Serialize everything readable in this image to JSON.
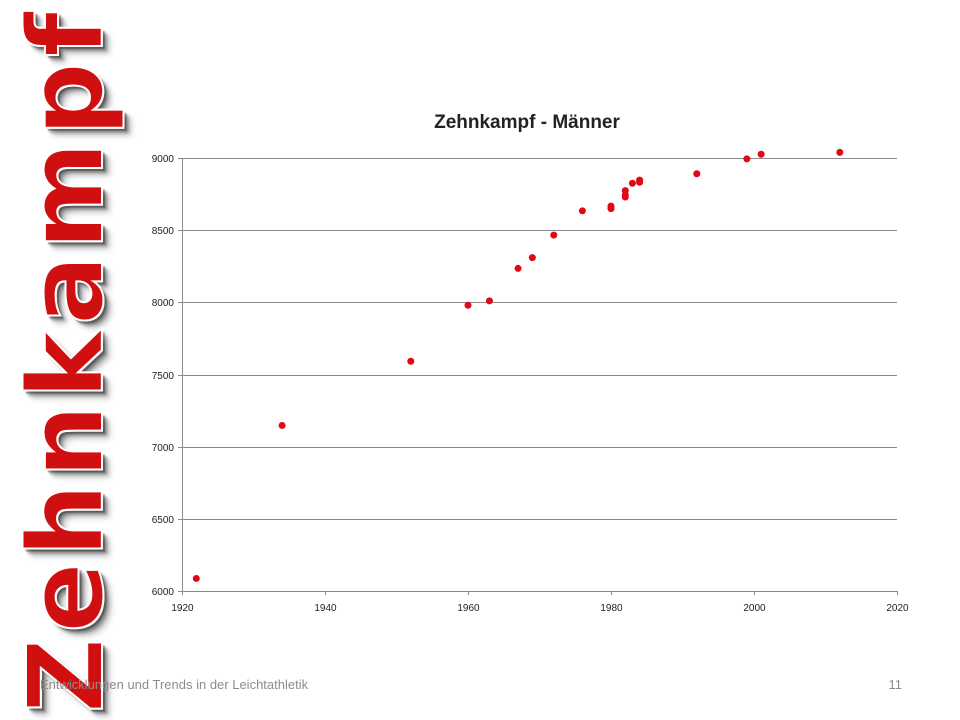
{
  "slide": {
    "side_title": "Zehnkampf",
    "footer_text": "Entwicklungen und Trends in der Leichtathletik",
    "page_number": "11",
    "accent_color": "#d01010"
  },
  "chart_data": {
    "type": "scatter",
    "title": "Zehnkampf - Männer",
    "xlabel": "",
    "ylabel": "",
    "xlim": [
      1920,
      2020
    ],
    "ylim": [
      6000,
      9000
    ],
    "x_ticks": [
      1920,
      1940,
      1960,
      1980,
      2000,
      2020
    ],
    "y_ticks": [
      6000,
      6500,
      7000,
      7500,
      8000,
      8500,
      9000
    ],
    "grid": "horizontal",
    "legend": "none",
    "marker_color": "#e30613",
    "series": [
      {
        "points": [
          {
            "x": 1922,
            "y": 6087
          },
          {
            "x": 1934,
            "y": 7147
          },
          {
            "x": 1952,
            "y": 7592
          },
          {
            "x": 1960,
            "y": 7980
          },
          {
            "x": 1963,
            "y": 8010
          },
          {
            "x": 1967,
            "y": 8235
          },
          {
            "x": 1969,
            "y": 8310
          },
          {
            "x": 1972,
            "y": 8466
          },
          {
            "x": 1976,
            "y": 8634
          },
          {
            "x": 1980,
            "y": 8649
          },
          {
            "x": 1980,
            "y": 8667
          },
          {
            "x": 1982,
            "y": 8730
          },
          {
            "x": 1982,
            "y": 8743
          },
          {
            "x": 1982,
            "y": 8774
          },
          {
            "x": 1983,
            "y": 8825
          },
          {
            "x": 1984,
            "y": 8832
          },
          {
            "x": 1984,
            "y": 8847
          },
          {
            "x": 1992,
            "y": 8891
          },
          {
            "x": 1999,
            "y": 8994
          },
          {
            "x": 2001,
            "y": 9026
          },
          {
            "x": 2012,
            "y": 9039
          }
        ]
      }
    ]
  }
}
